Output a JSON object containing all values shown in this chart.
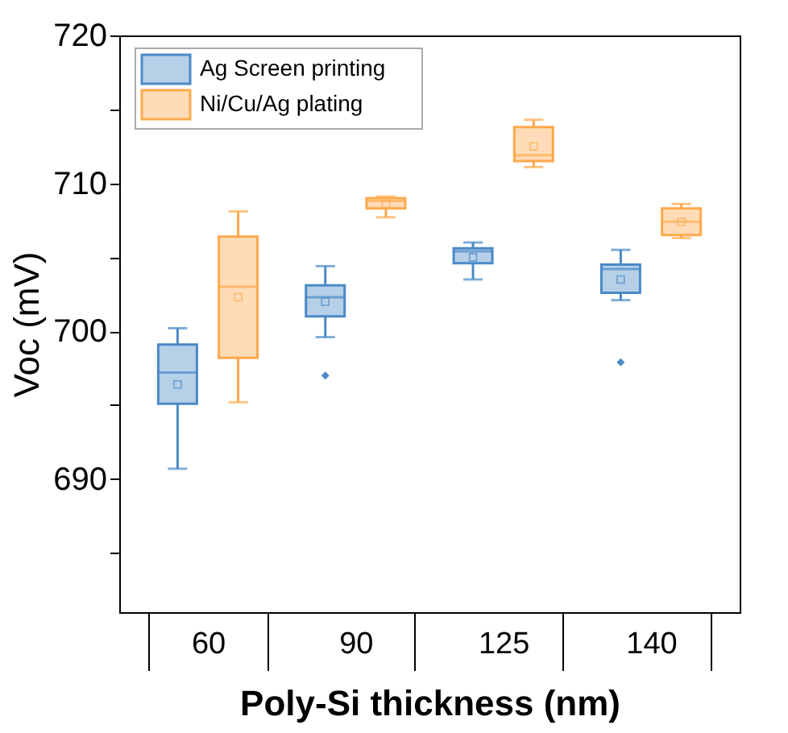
{
  "chart_data": {
    "type": "box",
    "xlabel": "Poly-Si thickness (nm)",
    "ylabel": "Voc (mV)",
    "categories": [
      "60",
      "90",
      "125",
      "140"
    ],
    "series": [
      {
        "name": "Ag Screen printing",
        "color": "#4a8ac7",
        "boxes": [
          {
            "low": 690.7,
            "q1": 695.1,
            "median": 697.2,
            "q3": 699.1,
            "high": 700.2,
            "mean": 696.4
          },
          {
            "low": 699.6,
            "q1": 701.0,
            "median": 702.3,
            "q3": 703.1,
            "high": 704.4,
            "mean": 702.0,
            "outliers": [
              697.0
            ]
          },
          {
            "low": 703.5,
            "q1": 704.6,
            "median": 705.4,
            "q3": 705.6,
            "high": 706.0,
            "mean": 705.0
          },
          {
            "low": 702.1,
            "q1": 702.6,
            "median": 704.2,
            "q3": 704.5,
            "high": 705.5,
            "mean": 703.5,
            "outliers": [
              697.9
            ]
          }
        ]
      },
      {
        "name": "Ni/Cu/Ag plating",
        "color": "#ffa94d",
        "boxes": [
          {
            "low": 695.2,
            "q1": 698.2,
            "median": 703.0,
            "q3": 706.4,
            "high": 708.1,
            "mean": 702.3
          },
          {
            "low": 707.7,
            "q1": 708.3,
            "median": 708.8,
            "q3": 709.0,
            "high": 709.1,
            "mean": 708.6
          },
          {
            "low": 711.1,
            "q1": 711.5,
            "median": 711.9,
            "q3": 713.8,
            "high": 714.3,
            "mean": 712.5
          },
          {
            "low": 706.3,
            "q1": 706.5,
            "median": 707.4,
            "q3": 708.3,
            "high": 708.6,
            "mean": 707.4
          }
        ]
      }
    ],
    "ylim": [
      681,
      720
    ],
    "yticks": [
      {
        "value": 685,
        "label": null
      },
      690,
      {
        "value": 695,
        "label": null
      },
      700,
      {
        "value": 705,
        "label": null
      },
      710,
      {
        "value": 715,
        "label": null
      },
      720
    ],
    "legend": "top left",
    "grid": false
  }
}
